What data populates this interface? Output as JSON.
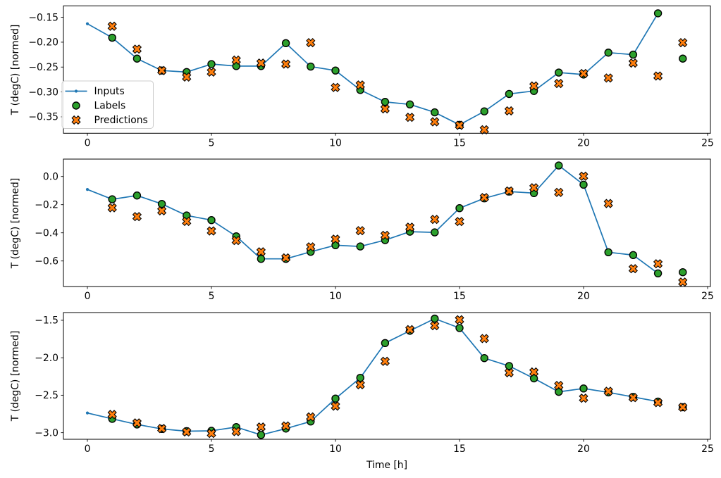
{
  "legend": {
    "position": "left middle of first subplot",
    "border_color": "#cccccc",
    "background": "#ffffff",
    "items": [
      {
        "label": "Inputs",
        "marker": "line-with-dot",
        "color": "#1f77b4",
        "edge_color": "#1f77b4"
      },
      {
        "label": "Labels",
        "marker": "filled-circle",
        "color": "#2ca02c",
        "edge_color": "#000000"
      },
      {
        "label": "Predictions",
        "marker": "thick-x",
        "color": "#ff7f0e",
        "edge_color": "#000000"
      }
    ]
  },
  "chart_data": [
    {
      "type": "line",
      "subplot": "top",
      "ylabel": "T (degC) [normed]",
      "xlabel": "",
      "grid": false,
      "xlim": [
        -0.966,
        25.114
      ],
      "ylim": [
        -0.383,
        -0.127
      ],
      "x_tick_values": [
        0,
        5,
        10,
        15,
        20,
        25
      ],
      "x_tick_labels": [
        "0",
        "5",
        "10",
        "15",
        "20",
        "25"
      ],
      "y_tick_values": [
        -0.15,
        -0.2,
        -0.25,
        -0.3,
        -0.35
      ],
      "y_tick_labels": [
        "−0.15",
        "−0.20",
        "−0.25",
        "−0.30",
        "−0.35"
      ],
      "series": [
        {
          "name": "Inputs",
          "kind": "line-dot",
          "color": "#1f77b4",
          "x": [
            0,
            1,
            2,
            3,
            4,
            5,
            6,
            7,
            8,
            9,
            10,
            11,
            12,
            13,
            14,
            15,
            16,
            17,
            18,
            19,
            20,
            21,
            22,
            23
          ],
          "y": [
            -0.163,
            -0.191,
            -0.233,
            -0.257,
            -0.26,
            -0.244,
            -0.248,
            -0.248,
            -0.202,
            -0.249,
            -0.257,
            -0.296,
            -0.32,
            -0.325,
            -0.341,
            -0.366,
            -0.339,
            -0.304,
            -0.298,
            -0.261,
            -0.265,
            -0.221,
            -0.225,
            -0.142
          ]
        },
        {
          "name": "Labels",
          "kind": "scatter-circle",
          "color": "#2ca02c",
          "edge_color": "#000000",
          "x": [
            1,
            2,
            3,
            4,
            5,
            6,
            7,
            8,
            9,
            10,
            11,
            12,
            13,
            14,
            15,
            16,
            17,
            18,
            19,
            20,
            21,
            22,
            23,
            24
          ],
          "y": [
            -0.191,
            -0.233,
            -0.257,
            -0.26,
            -0.244,
            -0.248,
            -0.248,
            -0.202,
            -0.249,
            -0.257,
            -0.296,
            -0.32,
            -0.325,
            -0.341,
            -0.366,
            -0.339,
            -0.304,
            -0.298,
            -0.261,
            -0.265,
            -0.221,
            -0.225,
            -0.142,
            -0.233
          ]
        },
        {
          "name": "Predictions",
          "kind": "scatter-x",
          "color": "#ff7f0e",
          "edge_color": "#000000",
          "x": [
            1,
            2,
            3,
            4,
            5,
            6,
            7,
            8,
            9,
            10,
            11,
            12,
            13,
            14,
            15,
            16,
            17,
            18,
            19,
            20,
            21,
            22,
            23,
            24
          ],
          "y": [
            -0.168,
            -0.214,
            -0.257,
            -0.27,
            -0.26,
            -0.236,
            -0.242,
            -0.244,
            -0.201,
            -0.291,
            -0.286,
            -0.334,
            -0.351,
            -0.36,
            -0.367,
            -0.376,
            -0.338,
            -0.288,
            -0.283,
            -0.263,
            -0.272,
            -0.242,
            -0.268,
            -0.201
          ]
        }
      ]
    },
    {
      "type": "line",
      "subplot": "middle",
      "ylabel": "T (degC) [normed]",
      "xlabel": "",
      "grid": false,
      "xlim": [
        -0.966,
        25.114
      ],
      "ylim": [
        -0.7815,
        0.1235
      ],
      "x_tick_values": [
        0,
        5,
        10,
        15,
        20,
        25
      ],
      "x_tick_labels": [
        "0",
        "5",
        "10",
        "15",
        "20",
        "25"
      ],
      "y_tick_values": [
        0.0,
        -0.2,
        -0.4,
        -0.6
      ],
      "y_tick_labels": [
        "0.0",
        "−0.2",
        "−0.4",
        "−0.6"
      ],
      "series": [
        {
          "name": "Inputs",
          "kind": "line-dot",
          "color": "#1f77b4",
          "x": [
            0,
            1,
            2,
            3,
            4,
            5,
            6,
            7,
            8,
            9,
            10,
            11,
            12,
            13,
            14,
            15,
            16,
            17,
            18,
            19,
            20,
            21,
            22,
            23
          ],
          "y": [
            -0.092,
            -0.162,
            -0.135,
            -0.195,
            -0.277,
            -0.31,
            -0.425,
            -0.585,
            -0.585,
            -0.535,
            -0.488,
            -0.497,
            -0.452,
            -0.392,
            -0.397,
            -0.225,
            -0.155,
            -0.107,
            -0.118,
            0.078,
            -0.058,
            -0.538,
            -0.558,
            -0.688
          ]
        },
        {
          "name": "Labels",
          "kind": "scatter-circle",
          "color": "#2ca02c",
          "edge_color": "#000000",
          "x": [
            1,
            2,
            3,
            4,
            5,
            6,
            7,
            8,
            9,
            10,
            11,
            12,
            13,
            14,
            15,
            16,
            17,
            18,
            19,
            20,
            21,
            22,
            23,
            24
          ],
          "y": [
            -0.162,
            -0.135,
            -0.195,
            -0.277,
            -0.31,
            -0.425,
            -0.585,
            -0.585,
            -0.535,
            -0.488,
            -0.497,
            -0.452,
            -0.392,
            -0.397,
            -0.225,
            -0.155,
            -0.107,
            -0.118,
            0.078,
            -0.058,
            -0.538,
            -0.558,
            -0.688,
            -0.68
          ]
        },
        {
          "name": "Predictions",
          "kind": "scatter-x",
          "color": "#ff7f0e",
          "edge_color": "#000000",
          "x": [
            1,
            2,
            3,
            4,
            5,
            6,
            7,
            8,
            9,
            10,
            11,
            12,
            13,
            14,
            15,
            16,
            17,
            18,
            19,
            20,
            21,
            22,
            23,
            24
          ],
          "y": [
            -0.222,
            -0.285,
            -0.244,
            -0.319,
            -0.387,
            -0.455,
            -0.535,
            -0.578,
            -0.5,
            -0.445,
            -0.385,
            -0.418,
            -0.36,
            -0.305,
            -0.32,
            -0.15,
            -0.103,
            -0.08,
            -0.113,
            0.002,
            -0.192,
            -0.655,
            -0.62,
            -0.75
          ]
        }
      ]
    },
    {
      "type": "line",
      "subplot": "bottom",
      "ylabel": "T (degC) [normed]",
      "xlabel": "Time [h]",
      "grid": false,
      "xlim": [
        -0.966,
        25.114
      ],
      "ylim": [
        -3.088,
        -1.397
      ],
      "x_tick_values": [
        0,
        5,
        10,
        15,
        20,
        25
      ],
      "x_tick_labels": [
        "0",
        "5",
        "10",
        "15",
        "20",
        "25"
      ],
      "y_tick_values": [
        -1.5,
        -2.0,
        -2.5,
        -3.0
      ],
      "y_tick_labels": [
        "−1.5",
        "−2.0",
        "−2.5",
        "−3.0"
      ],
      "series": [
        {
          "name": "Inputs",
          "kind": "line-dot",
          "color": "#1f77b4",
          "x": [
            0,
            1,
            2,
            3,
            4,
            5,
            6,
            7,
            8,
            9,
            10,
            11,
            12,
            13,
            14,
            15,
            16,
            17,
            18,
            19,
            20,
            21,
            22,
            23
          ],
          "y": [
            -2.737,
            -2.815,
            -2.89,
            -2.95,
            -2.98,
            -2.975,
            -2.925,
            -3.03,
            -2.945,
            -2.85,
            -2.545,
            -2.268,
            -1.804,
            -1.64,
            -1.478,
            -1.603,
            -2.005,
            -2.11,
            -2.275,
            -2.455,
            -2.41,
            -2.462,
            -2.523,
            -2.585
          ]
        },
        {
          "name": "Labels",
          "kind": "scatter-circle",
          "color": "#2ca02c",
          "edge_color": "#000000",
          "x": [
            1,
            2,
            3,
            4,
            5,
            6,
            7,
            8,
            9,
            10,
            11,
            12,
            13,
            14,
            15,
            16,
            17,
            18,
            19,
            20,
            21,
            22,
            23,
            24
          ],
          "y": [
            -2.815,
            -2.89,
            -2.95,
            -2.98,
            -2.975,
            -2.925,
            -3.03,
            -2.945,
            -2.85,
            -2.545,
            -2.268,
            -1.804,
            -1.64,
            -1.478,
            -1.603,
            -2.005,
            -2.11,
            -2.275,
            -2.455,
            -2.41,
            -2.462,
            -2.523,
            -2.585,
            -2.66
          ]
        },
        {
          "name": "Predictions",
          "kind": "scatter-x",
          "color": "#ff7f0e",
          "edge_color": "#000000",
          "x": [
            1,
            2,
            3,
            4,
            5,
            6,
            7,
            8,
            9,
            10,
            11,
            12,
            13,
            14,
            15,
            16,
            17,
            18,
            19,
            20,
            21,
            22,
            23,
            24
          ],
          "y": [
            -2.757,
            -2.87,
            -2.945,
            -2.99,
            -3.01,
            -2.985,
            -2.925,
            -2.91,
            -2.79,
            -2.645,
            -2.36,
            -2.048,
            -1.625,
            -1.572,
            -1.493,
            -1.744,
            -2.2,
            -2.19,
            -2.37,
            -2.54,
            -2.448,
            -2.532,
            -2.598,
            -2.66
          ]
        }
      ]
    }
  ]
}
